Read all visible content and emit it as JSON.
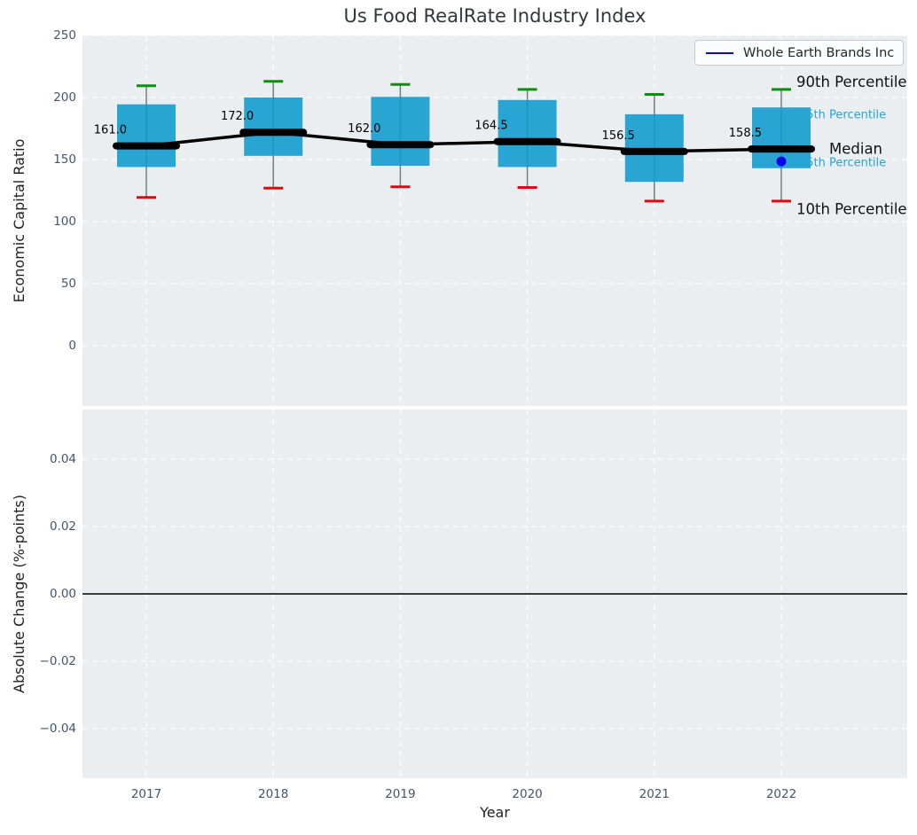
{
  "title": "Us Food RealRate Industry Index",
  "legend": {
    "label": "Whole Earth Brands Inc"
  },
  "axes": {
    "top": {
      "ylabel": "Economic Capital Ratio",
      "yticks": [
        "250",
        "200",
        "150",
        "100",
        "50",
        "0"
      ]
    },
    "bottom": {
      "ylabel": "Absolute Change (%-points)",
      "yticks": [
        0.04,
        0.02,
        0.0,
        -0.02,
        -0.04
      ],
      "xlabel": "Year"
    }
  },
  "annotations": {
    "p90": "90th Percentile",
    "p75": "75th Percentile",
    "median": "Median",
    "p25": "25th Percentile",
    "p10": "10th Percentile"
  },
  "colors": {
    "box": "#0e9bce",
    "whisker": "#6f7f89",
    "cap_high": "#0a8f0a",
    "cap_low": "#e8000d",
    "median_line": "#000000",
    "company": "#0000ee",
    "percentile_text_blue": "#23a5da",
    "annotation_text_dark": "#111111",
    "plot_bg": "#eaeef0",
    "grid": "#ffffff",
    "tick_label": "#42566a",
    "zero_line": "#000000"
  },
  "chart_data": [
    {
      "type": "boxplot",
      "title": "Us Food RealRate Industry Index",
      "xlabel": "Year",
      "ylabel": "Economic Capital Ratio",
      "categories": [
        "2017",
        "2018",
        "2019",
        "2020",
        "2021",
        "2022"
      ],
      "yticks": [
        250,
        200,
        150,
        100,
        50,
        0
      ],
      "ylim": [
        -48.5,
        250
      ],
      "grid": true,
      "legend_position": "upper right",
      "series": [
        {
          "name": "90th Percentile",
          "values": [
            209.5,
            213.0,
            210.5,
            206.5,
            202.5,
            206.5
          ]
        },
        {
          "name": "75th Percentile",
          "values": [
            194.5,
            200.0,
            200.5,
            198.0,
            186.5,
            192.0
          ]
        },
        {
          "name": "Median",
          "values": [
            161.0,
            172.0,
            162.0,
            164.5,
            156.5,
            158.5
          ]
        },
        {
          "name": "25th Percentile",
          "values": [
            144.0,
            153.0,
            145.0,
            144.0,
            132.0,
            143.0
          ]
        },
        {
          "name": "10th Percentile",
          "values": [
            119.5,
            127.0,
            128.0,
            127.5,
            116.5,
            116.5
          ]
        }
      ],
      "median_labels": [
        "161.0",
        "172.0",
        "162.0",
        "164.5",
        "156.5",
        "158.5"
      ],
      "median_trend_line": true,
      "company_series": {
        "name": "Whole Earth Brands Inc",
        "points": [
          {
            "x": "2022",
            "y": 148.5
          }
        ]
      }
    },
    {
      "type": "line",
      "xlabel": "Year",
      "ylabel": "Absolute Change (%-points)",
      "categories": [
        "2017",
        "2018",
        "2019",
        "2020",
        "2021",
        "2022"
      ],
      "yticks": [
        0.04,
        0.02,
        0.0,
        -0.02,
        -0.04
      ],
      "ylim": [
        -0.055,
        0.055
      ],
      "grid": true,
      "series": [],
      "zero_line": 0.0
    }
  ]
}
